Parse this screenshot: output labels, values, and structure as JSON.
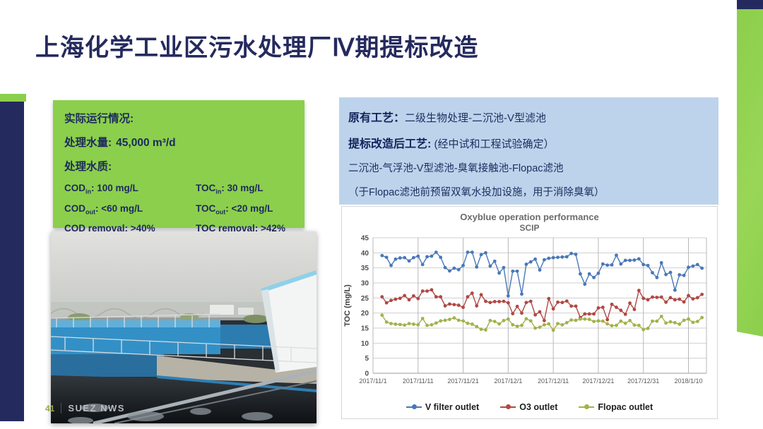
{
  "colors": {
    "navy": "#252a5e",
    "green": "#8ccf4c",
    "light_blue": "#bdd3eb",
    "series_blue": "#4878b8",
    "series_red": "#b04843",
    "series_green": "#a2b24c"
  },
  "slide": {
    "title": "上海化学工业区污水处理厂Ⅳ期提标改造",
    "footer": {
      "page_number": "41",
      "brand": "SUEZ NWS"
    }
  },
  "operation_box": {
    "heading": "实际运行情况:",
    "flow_label": "处理水量:",
    "flow_value": "45,000 m³/d",
    "quality_heading": "处理水质:",
    "cells": [
      {
        "base": "COD",
        "sub": "in",
        "rest": ": 100 mg/L"
      },
      {
        "base": "TOC",
        "sub": "in",
        "rest": ": 30 mg/L"
      },
      {
        "base": "COD",
        "sub": "out",
        "rest": ": <60 mg/L"
      },
      {
        "base": "TOC",
        "sub": "out",
        "rest": ": <20 mg/L"
      },
      {
        "base": "COD removal",
        "sub": "",
        "rest": ": >40%"
      },
      {
        "base": "TOC removal",
        "sub": "",
        "rest": ": >42%"
      }
    ]
  },
  "process_box": {
    "line1_label": "原有工艺：",
    "line1_text": "二级生物处理-二沉池-V型滤池",
    "line2_label": "提标改造后工艺:",
    "line2_text": " (经中试和工程试验确定）",
    "line3_text": "二沉池-气浮池-V型滤池-臭氧接触池-Flopac滤池",
    "line4_text": "（于Flopac滤池前预留双氧水投加设施，用于消除臭氧）"
  },
  "chart_data": {
    "type": "line",
    "title": "Oxyblue operation performance",
    "subtitle": "SCIP",
    "ylabel": "TOC (mg/L)",
    "ylim": [
      0,
      45
    ],
    "ytick_step": 5,
    "x_domain": [
      0,
      74
    ],
    "x_tick_days": [
      0,
      10,
      20,
      30,
      40,
      50,
      60,
      70
    ],
    "x_tick_labels": [
      "2017/11/1",
      "2017/11/11",
      "2017/11/21",
      "2017/12/1",
      "2017/12/11",
      "2017/12/21",
      "2017/12/31",
      "2018/1/10"
    ],
    "start_day": 2,
    "grid": true,
    "legend_position": "bottom",
    "series": [
      {
        "name": "V filter outlet",
        "color": "#4878b8",
        "values": [
          39.1,
          38.5,
          35.8,
          37.9,
          38.3,
          38.4,
          37.3,
          38.4,
          38.9,
          36.1,
          38.7,
          38.9,
          40.2,
          38.5,
          35.1,
          34.0,
          34.9,
          34.4,
          35.8,
          40.2,
          40.2,
          35.3,
          39.4,
          40.0,
          35.6,
          37.2,
          33.3,
          35.1,
          25.7,
          33.9,
          33.9,
          26.3,
          36.2,
          37.0,
          37.9,
          34.3,
          37.7,
          38.2,
          38.4,
          38.5,
          38.6,
          38.7,
          39.8,
          39.5,
          33.0,
          29.6,
          33.0,
          31.8,
          33.2,
          36.3,
          35.9,
          36.0,
          39.2,
          36.3,
          37.5,
          37.5,
          37.6,
          38.0,
          36.1,
          35.8,
          33.4,
          31.8,
          36.7,
          32.8,
          33.5,
          27.6,
          32.7,
          32.5,
          35.2,
          35.6,
          36.1,
          34.9
        ]
      },
      {
        "name": "O3 outlet",
        "color": "#b04843",
        "values": [
          25.4,
          23.4,
          24.2,
          24.6,
          24.9,
          25.8,
          24.4,
          25.7,
          24.8,
          27.3,
          27.3,
          27.7,
          25.4,
          25.4,
          22.4,
          23.0,
          22.8,
          22.6,
          21.9,
          25.4,
          26.6,
          22.4,
          26.1,
          23.9,
          23.5,
          23.8,
          23.8,
          23.9,
          23.4,
          19.8,
          22.2,
          20.0,
          23.5,
          23.9,
          19.4,
          20.4,
          17.5,
          24.8,
          21.4,
          23.6,
          23.5,
          24.0,
          22.3,
          22.3,
          18.5,
          19.7,
          19.7,
          19.7,
          21.7,
          21.9,
          17.8,
          22.9,
          21.9,
          20.9,
          19.6,
          23.3,
          21.2,
          27.5,
          24.9,
          24.4,
          25.3,
          25.2,
          25.3,
          23.6,
          25.1,
          24.4,
          24.6,
          23.7,
          25.8,
          24.7,
          25.1,
          26.2
        ]
      },
      {
        "name": "Flopac outlet",
        "color": "#a2b24c",
        "values": [
          19.3,
          17.0,
          16.5,
          16.3,
          16.2,
          16.0,
          16.5,
          16.3,
          16.1,
          18.2,
          15.9,
          16.1,
          16.7,
          17.4,
          17.6,
          17.9,
          18.4,
          17.6,
          17.4,
          16.6,
          16.3,
          15.5,
          14.6,
          14.4,
          17.5,
          17.2,
          16.4,
          17.5,
          18.0,
          16.1,
          15.6,
          15.9,
          18.1,
          17.4,
          15.0,
          15.3,
          16.1,
          16.4,
          14.3,
          16.5,
          16.1,
          16.8,
          17.7,
          17.6,
          18.0,
          18.0,
          17.9,
          17.2,
          17.4,
          17.3,
          16.4,
          15.8,
          15.9,
          17.3,
          16.6,
          17.5,
          16.0,
          15.9,
          14.5,
          14.9,
          17.3,
          17.3,
          18.9,
          16.7,
          17.1,
          16.8,
          16.3,
          17.6,
          18.0,
          16.9,
          17.2,
          18.5
        ]
      }
    ]
  }
}
